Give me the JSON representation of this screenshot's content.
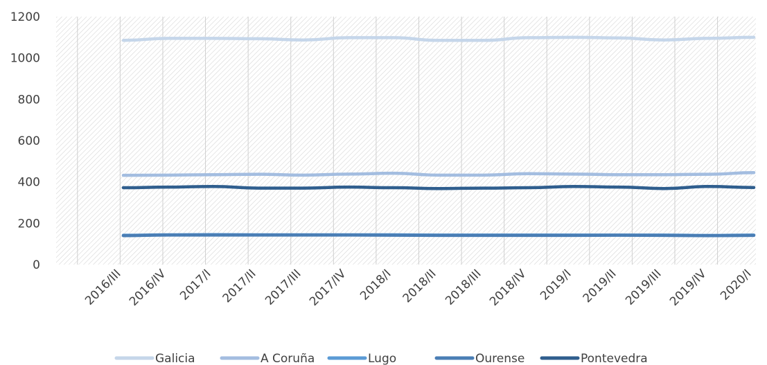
{
  "chart_data": {
    "type": "line",
    "title": "",
    "xlabel": "",
    "ylabel": "",
    "ylim": [
      0,
      1200
    ],
    "yticks": [
      0,
      200,
      400,
      600,
      800,
      1000,
      1200
    ],
    "categories": [
      "2016/III",
      "2016/IV",
      "2017/I",
      "2017/II",
      "2017/III",
      "2017/IV",
      "2018/I",
      "2018/II",
      "2018/III",
      "2018/IV",
      "2019/I",
      "2019/II",
      "2019/III",
      "2019/IV",
      "2020/I"
    ],
    "grid": "hatched plot area",
    "legend_position": "bottom",
    "series": [
      {
        "name": "Galicia",
        "color": "#c5d6ea",
        "values": [
          1085,
          1095,
          1095,
          1093,
          1087,
          1098,
          1098,
          1085,
          1085,
          1098,
          1100,
          1097,
          1087,
          1095,
          1100
        ]
      },
      {
        "name": "A Coruña",
        "color": "#a3bde0",
        "values": [
          432,
          433,
          435,
          437,
          433,
          438,
          442,
          433,
          433,
          440,
          438,
          435,
          435,
          437,
          445
        ]
      },
      {
        "name": "Lugo",
        "color": "#5b9bd5",
        "values": [
          142,
          144,
          145,
          144,
          144,
          144,
          144,
          143,
          143,
          143,
          143,
          143,
          143,
          141,
          143
        ]
      },
      {
        "name": "Ourense",
        "color": "#4a7eb5",
        "values": [
          140,
          143,
          143,
          143,
          143,
          143,
          142,
          141,
          141,
          141,
          141,
          142,
          141,
          140,
          141
        ]
      },
      {
        "name": "Pontevedra",
        "color": "#2f5e8e",
        "values": [
          372,
          375,
          378,
          370,
          370,
          375,
          372,
          368,
          370,
          372,
          378,
          375,
          368,
          378,
          373
        ]
      }
    ]
  }
}
